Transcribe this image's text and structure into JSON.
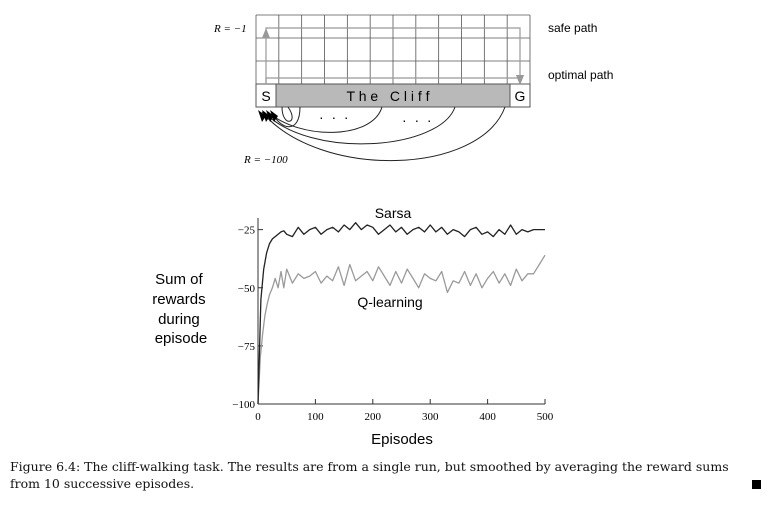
{
  "gridworld": {
    "reward_step_label": "R = −1",
    "reward_cliff_label": "R = −100",
    "start_label": "S",
    "goal_label": "G",
    "cliff_label": "T h e   C l i f f",
    "safe_path_label": "safe path",
    "optimal_path_label": "optimal path",
    "dots_left": "·  ·  ·",
    "dots_right": "·  ·  ·",
    "columns": 12,
    "rows": 4,
    "colors": {
      "cliff": "#b9b9b9",
      "grid": "#555555",
      "arrow": "#999999"
    }
  },
  "chart_data": {
    "type": "line",
    "xlabel": "Episodes",
    "ylabel": [
      "Sum of",
      "rewards",
      "during",
      "episode"
    ],
    "xlim": [
      0,
      500
    ],
    "ylim": [
      -100,
      -20
    ],
    "xticks": [
      0,
      100,
      200,
      300,
      400,
      500
    ],
    "yticks": [
      -25,
      -50,
      -75,
      -100
    ],
    "ytick_labels": [
      "−25",
      "−50",
      "−75",
      "−100"
    ],
    "grid": false,
    "series": [
      {
        "name": "Sarsa",
        "color": "#222222",
        "x": [
          0,
          5,
          10,
          15,
          20,
          25,
          30,
          35,
          40,
          45,
          50,
          60,
          70,
          80,
          90,
          100,
          110,
          120,
          130,
          140,
          150,
          160,
          170,
          180,
          190,
          200,
          210,
          220,
          230,
          240,
          250,
          260,
          270,
          280,
          290,
          300,
          310,
          320,
          330,
          340,
          350,
          360,
          370,
          380,
          390,
          400,
          410,
          420,
          430,
          440,
          450,
          460,
          470,
          480,
          490,
          500
        ],
        "y": [
          -100,
          -55,
          -42,
          -35,
          -31,
          -29,
          -28,
          -27,
          -26,
          -25.5,
          -27,
          -28,
          -24,
          -27,
          -25,
          -24,
          -27,
          -25,
          -24,
          -26,
          -23,
          -25,
          -22,
          -25,
          -23,
          -24,
          -27,
          -25,
          -23,
          -26,
          -24,
          -27,
          -25,
          -24,
          -26,
          -23,
          -26,
          -24,
          -27,
          -25,
          -26,
          -28,
          -25,
          -24,
          -27,
          -26,
          -28,
          -25,
          -27,
          -23,
          -27,
          -25,
          -26,
          -25,
          -25,
          -25
        ]
      },
      {
        "name": "Q-learning",
        "color": "#9a9a9a",
        "x": [
          0,
          4,
          8,
          12,
          16,
          20,
          25,
          30,
          35,
          40,
          45,
          50,
          60,
          70,
          80,
          90,
          100,
          110,
          120,
          130,
          140,
          150,
          160,
          170,
          180,
          190,
          200,
          210,
          220,
          230,
          240,
          250,
          260,
          270,
          280,
          290,
          300,
          310,
          320,
          330,
          340,
          350,
          360,
          370,
          380,
          390,
          400,
          410,
          420,
          430,
          440,
          450,
          460,
          470,
          480,
          490,
          500
        ],
        "y": [
          -100,
          -80,
          -70,
          -62,
          -57,
          -53,
          -50,
          -46,
          -50,
          -43,
          -50,
          -42,
          -48,
          -44,
          -46,
          -45,
          -43,
          -48,
          -45,
          -47,
          -41,
          -49,
          -40,
          -47,
          -45,
          -43,
          -47,
          -41,
          -45,
          -49,
          -43,
          -48,
          -42,
          -46,
          -50,
          -44,
          -46,
          -47,
          -43,
          -52,
          -47,
          -48,
          -43,
          -49,
          -44,
          -50,
          -46,
          -43,
          -48,
          -44,
          -49,
          -42,
          -47,
          -44,
          -44,
          -40,
          -36
        ]
      }
    ]
  },
  "caption": {
    "text": "Figure 6.4: The cliff-walking task. The results are from a single run, but smoothed by averaging the reward sums from 10 successive episodes."
  }
}
